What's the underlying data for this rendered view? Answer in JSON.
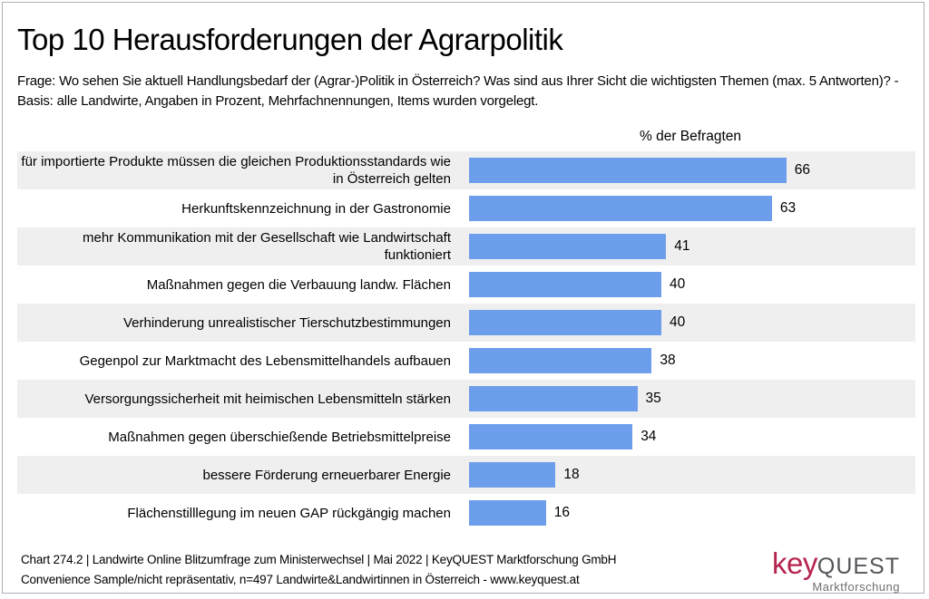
{
  "title": "Top 10 Herausforderungen der Agrarpolitik",
  "subtitle": "Frage: Wo sehen Sie aktuell Handlungsbedarf der (Agrar-)Politik in Österreich? Was sind aus Ihrer Sicht die wichtigsten Themen (max. 5 Antworten)?  - Basis: alle Landwirte, Angaben in Prozent, Mehrfachnennungen, Items wurden vorgelegt.",
  "axis_header": "% der Befragten",
  "chart_data": {
    "type": "bar",
    "orientation": "horizontal",
    "title": "Top 10 Herausforderungen der Agrarpolitik",
    "xlabel": "% der Befragten",
    "ylabel": "",
    "xlim": [
      0,
      93
    ],
    "unit": "percent",
    "grid": false,
    "legend": false,
    "data_labels": true,
    "bar_color": "#6d9eeb",
    "stripe_color": "#efefef",
    "categories": [
      "für importierte Produkte müssen die gleichen Produktionsstandards wie in Österreich gelten",
      "Herkunftskennzeichnung in der Gastronomie",
      "mehr Kommunikation mit der Gesellschaft wie Landwirtschaft funktioniert",
      "Maßnahmen gegen die Verbauung landw. Flächen",
      "Verhinderung unrealistischer Tierschutzbestimmungen",
      "Gegenpol zur Marktmacht des Lebensmittelhandels aufbauen",
      "Versorgungssicherheit mit heimischen Lebensmitteln stärken",
      "Maßnahmen gegen überschießende Betriebsmittelpreise",
      "bessere Förderung erneuerbarer Energie",
      "Flächenstilllegung im neuen GAP rückgängig machen"
    ],
    "values": [
      66,
      63,
      41,
      40,
      40,
      38,
      35,
      34,
      18,
      16
    ]
  },
  "footer": {
    "line1": "Chart 274.2 | Landwirte Online Blitzumfrage zum Ministerwechsel | Mai 2022 | KeyQUEST Marktforschung GmbH",
    "line2": "Convenience Sample/nicht repräsentativ, n=497 Landwirte&Landwirtinnen in Österreich - www.keyquest.at"
  },
  "logo": {
    "brand_part1": "key",
    "brand_part2": "QUEST",
    "tagline": "Marktforschung",
    "brand_color": "#b5244e",
    "secondary_color": "#55565a"
  }
}
